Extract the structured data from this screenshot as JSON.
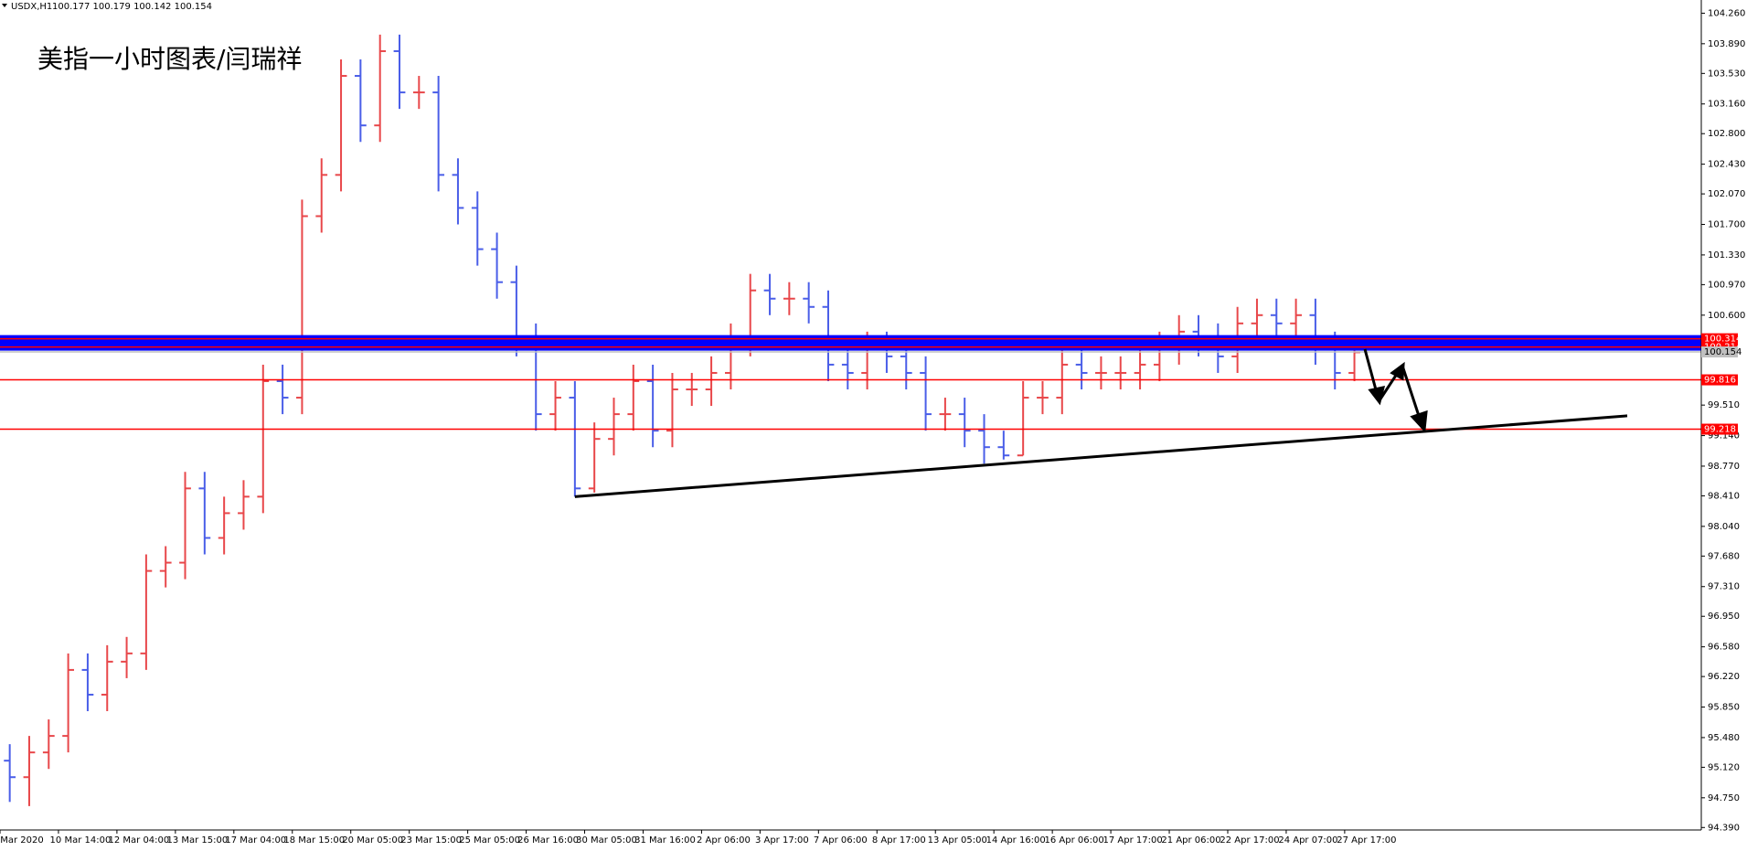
{
  "chart_data": {
    "type": "ohlc",
    "symbol": "USDX,H1",
    "quote": "100.177 100.179 100.142 100.154",
    "title": "美指一小时图表/闫瑞祥",
    "up_color": "#e8474a",
    "down_color": "#4a5ee8",
    "open": [
      95.2,
      95.0,
      95.3,
      95.5,
      96.3,
      96.0,
      96.4,
      96.5,
      97.5,
      97.6,
      98.5,
      97.9,
      98.2,
      98.4,
      99.8,
      99.6,
      101.8,
      102.3,
      103.5,
      102.9,
      103.8,
      103.3,
      103.3,
      102.3,
      101.9,
      101.4,
      101.0,
      100.3,
      99.4,
      99.6,
      98.5,
      99.1,
      99.4,
      99.8,
      99.2,
      99.7,
      99.7,
      99.9,
      100.3,
      100.9,
      100.8,
      100.8,
      100.7,
      100.0,
      99.9,
      100.2,
      100.1,
      99.9,
      99.4,
      99.4,
      99.2,
      99.0,
      98.9,
      99.6,
      99.6,
      100.0,
      99.9,
      99.9,
      99.9,
      100.0,
      100.2,
      100.4,
      100.3,
      100.1,
      100.5,
      100.6,
      100.5,
      100.6,
      100.2,
      99.9
    ],
    "high": [
      95.4,
      95.5,
      95.7,
      96.5,
      96.5,
      96.6,
      96.7,
      97.7,
      97.8,
      98.7,
      98.7,
      98.4,
      98.6,
      100.0,
      100.0,
      102.0,
      102.5,
      103.7,
      103.7,
      104.0,
      104.0,
      103.5,
      103.5,
      102.5,
      102.1,
      101.6,
      101.2,
      100.5,
      99.8,
      99.8,
      99.3,
      99.6,
      100.0,
      100.0,
      99.9,
      99.9,
      100.1,
      100.5,
      101.1,
      101.1,
      101.0,
      101.0,
      100.9,
      100.2,
      100.4,
      100.4,
      100.3,
      100.1,
      99.6,
      99.6,
      99.4,
      99.2,
      99.8,
      99.8,
      100.2,
      100.2,
      100.1,
      100.1,
      100.2,
      100.4,
      100.6,
      100.6,
      100.5,
      100.7,
      100.8,
      100.8,
      100.8,
      100.8,
      100.4,
      100.35
    ],
    "low": [
      94.7,
      94.65,
      95.1,
      95.3,
      95.8,
      95.8,
      96.2,
      96.3,
      97.3,
      97.4,
      97.7,
      97.7,
      98.0,
      98.2,
      99.4,
      99.4,
      101.6,
      102.1,
      102.7,
      102.7,
      103.1,
      103.1,
      102.1,
      101.7,
      101.2,
      100.8,
      100.1,
      99.2,
      99.2,
      98.4,
      98.45,
      98.9,
      99.2,
      99.0,
      99.0,
      99.5,
      99.5,
      99.7,
      100.1,
      100.6,
      100.6,
      100.5,
      99.8,
      99.7,
      99.7,
      99.9,
      99.7,
      99.2,
      99.2,
      99.0,
      98.8,
      98.85,
      98.9,
      99.4,
      99.4,
      99.7,
      99.7,
      99.7,
      99.7,
      99.8,
      100.0,
      100.1,
      99.9,
      99.9,
      100.3,
      100.3,
      100.3,
      100.0,
      99.7,
      99.8
    ],
    "close": [
      95.0,
      95.3,
      95.5,
      96.3,
      96.0,
      96.4,
      96.5,
      97.5,
      97.6,
      98.5,
      97.9,
      98.2,
      98.4,
      99.8,
      99.6,
      101.8,
      102.3,
      103.5,
      102.9,
      103.8,
      103.3,
      103.3,
      102.3,
      101.9,
      101.4,
      101.0,
      100.3,
      99.4,
      99.6,
      98.5,
      99.1,
      99.4,
      99.8,
      99.2,
      99.7,
      99.7,
      99.9,
      100.3,
      100.9,
      100.8,
      100.8,
      100.7,
      100.0,
      99.9,
      100.2,
      100.1,
      99.9,
      99.4,
      99.4,
      99.2,
      99.0,
      98.9,
      99.6,
      99.6,
      100.0,
      99.9,
      99.9,
      99.9,
      100.0,
      100.2,
      100.4,
      100.3,
      100.1,
      100.5,
      100.6,
      100.5,
      100.6,
      100.2,
      99.9,
      100.15
    ],
    "xlim": [
      0,
      87.3
    ],
    "xticks": [
      {
        "value": 0,
        "label": "Mar 2020"
      },
      {
        "value": 3,
        "label": "10 Mar 14:00"
      },
      {
        "value": 6,
        "label": "12 Mar 04:00"
      },
      {
        "value": 9,
        "label": "13 Mar 15:00"
      },
      {
        "value": 12,
        "label": "17 Mar 04:00"
      },
      {
        "value": 15,
        "label": "18 Mar 15:00"
      },
      {
        "value": 18,
        "label": "20 Mar 05:00"
      },
      {
        "value": 21,
        "label": "23 Mar 15:00"
      },
      {
        "value": 24,
        "label": "25 Mar 05:00"
      },
      {
        "value": 27,
        "label": "26 Mar 16:00"
      },
      {
        "value": 30,
        "label": "30 Mar 05:00"
      },
      {
        "value": 33,
        "label": "31 Mar 16:00"
      },
      {
        "value": 36,
        "label": "2 Apr 06:00"
      },
      {
        "value": 39,
        "label": "3 Apr 17:00"
      },
      {
        "value": 42,
        "label": "7 Apr 06:00"
      },
      {
        "value": 45,
        "label": "8 Apr 17:00"
      },
      {
        "value": 48,
        "label": "13 Apr 05:00"
      },
      {
        "value": 51,
        "label": "14 Apr 16:00"
      },
      {
        "value": 54,
        "label": "16 Apr 06:00"
      },
      {
        "value": 57,
        "label": "17 Apr 17:00"
      },
      {
        "value": 60,
        "label": "21 Apr 06:00"
      },
      {
        "value": 63,
        "label": "22 Apr 17:00"
      },
      {
        "value": 66,
        "label": "24 Apr 07:00"
      },
      {
        "value": 69,
        "label": "27 Apr 17:00"
      }
    ],
    "ylim": [
      94.36,
      104.42
    ],
    "yticks": [
      {
        "value": 104.26,
        "label": "104.260"
      },
      {
        "value": 103.89,
        "label": "103.890"
      },
      {
        "value": 103.53,
        "label": "103.530"
      },
      {
        "value": 103.16,
        "label": "103.160"
      },
      {
        "value": 102.8,
        "label": "102.800"
      },
      {
        "value": 102.43,
        "label": "102.430"
      },
      {
        "value": 102.07,
        "label": "102.070"
      },
      {
        "value": 101.7,
        "label": "101.700"
      },
      {
        "value": 101.33,
        "label": "101.330"
      },
      {
        "value": 100.97,
        "label": "100.970"
      },
      {
        "value": 100.6,
        "label": "100.600"
      },
      {
        "value": 99.51,
        "label": "99.510"
      },
      {
        "value": 99.14,
        "label": "99.140"
      },
      {
        "value": 98.77,
        "label": "98.770"
      },
      {
        "value": 98.41,
        "label": "98.410"
      },
      {
        "value": 98.04,
        "label": "98.040"
      },
      {
        "value": 97.68,
        "label": "97.680"
      },
      {
        "value": 97.31,
        "label": "97.310"
      },
      {
        "value": 96.95,
        "label": "96.950"
      },
      {
        "value": 96.58,
        "label": "96.580"
      },
      {
        "value": 96.22,
        "label": "96.220"
      },
      {
        "value": 95.85,
        "label": "95.850"
      },
      {
        "value": 95.48,
        "label": "95.480"
      },
      {
        "value": 95.12,
        "label": "95.120"
      },
      {
        "value": 94.75,
        "label": "94.750"
      },
      {
        "value": 94.39,
        "label": "94.390"
      }
    ],
    "band": {
      "values": [
        100.214,
        100.314
      ],
      "color": "#0000ff"
    },
    "levels": [
      {
        "value": 100.314,
        "label": "100.314",
        "color": "#ff0000"
      },
      {
        "value": 100.214,
        "label": "100.214",
        "color": "#ff0000"
      },
      {
        "value": 100.154,
        "label": "100.154",
        "color": "#c0c0c0"
      },
      {
        "value": 99.816,
        "label": "99.816",
        "color": "#ff0000"
      },
      {
        "value": 99.218,
        "label": "99.218",
        "color": "#ff0000"
      }
    ],
    "trendline": {
      "x": [
        29.5,
        83.5
      ],
      "y": [
        98.4,
        99.38
      ],
      "color": "#000000"
    }
  }
}
